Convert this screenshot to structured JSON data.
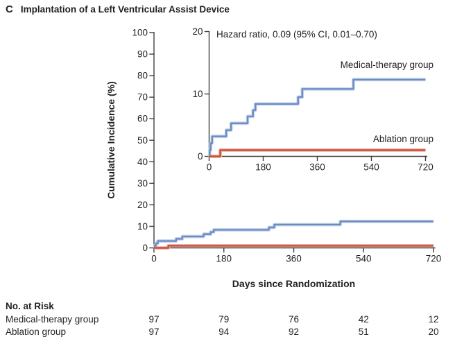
{
  "panel": {
    "letter": "C",
    "title": "Implantation of a Left Ventricular Assist Device"
  },
  "chart_data": {
    "type": "line",
    "subtype": "step-cumulative-incidence",
    "annotation": "Hazard ratio, 0.09 (95% CI, 0.01–0.70)",
    "xlabel": "Days since Randomization",
    "ylabel": "Cumulative Incidence (%)",
    "xlim": [
      0,
      720
    ],
    "x_ticks": [
      0,
      180,
      360,
      540,
      720
    ],
    "main_axis": {
      "ylim": [
        0,
        100
      ],
      "y_ticks": [
        0,
        10,
        20,
        30,
        40,
        50,
        60,
        70,
        80,
        90,
        100
      ]
    },
    "inset_axis": {
      "ylim": [
        0,
        20
      ],
      "y_ticks": [
        0,
        10,
        20
      ]
    },
    "grid": false,
    "legend_position": "labels-at-line-ends",
    "series": [
      {
        "id": "medical-therapy",
        "name": "Medical-therapy group",
        "color": "#6d8cc4",
        "halo_color": "#c6d4eb",
        "points": [
          [
            0,
            0
          ],
          [
            2,
            1.0
          ],
          [
            5,
            2.1
          ],
          [
            10,
            3.2
          ],
          [
            57,
            4.2
          ],
          [
            73,
            5.3
          ],
          [
            128,
            6.4
          ],
          [
            146,
            7.4
          ],
          [
            154,
            8.4
          ],
          [
            296,
            9.5
          ],
          [
            310,
            10.8
          ],
          [
            480,
            12.3
          ],
          [
            720,
            12.3
          ]
        ]
      },
      {
        "id": "ablation",
        "name": "Ablation group",
        "color": "#c5503c",
        "halo_color": "#eeb4a5",
        "points": [
          [
            0,
            0
          ],
          [
            37,
            1.0
          ],
          [
            720,
            1.0
          ]
        ]
      }
    ]
  },
  "risk_table": {
    "heading": "No. at Risk",
    "columns_days": [
      0,
      180,
      360,
      540,
      720
    ],
    "rows": [
      {
        "label": "Medical-therapy group",
        "values": [
          "97",
          "79",
          "76",
          "42",
          "12"
        ]
      },
      {
        "label": "Ablation group",
        "values": [
          "97",
          "94",
          "92",
          "51",
          "20"
        ]
      }
    ]
  }
}
